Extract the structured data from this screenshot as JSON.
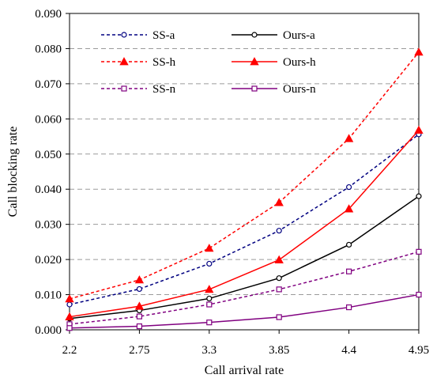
{
  "chart_data": {
    "type": "line",
    "xlabel": "Call arrival rate",
    "ylabel": "Call blocking rate",
    "x": [
      2.2,
      2.75,
      3.3,
      3.85,
      4.4,
      4.95
    ],
    "x_tick_labels": [
      "2.2",
      "2.75",
      "3.3",
      "3.85",
      "4.4",
      "4.95"
    ],
    "ylim": [
      0,
      0.09
    ],
    "y_ticks": [
      0,
      0.01,
      0.02,
      0.03,
      0.04,
      0.05,
      0.06,
      0.07,
      0.08,
      0.09
    ],
    "y_tick_labels": [
      "0.000",
      "0.010",
      "0.020",
      "0.030",
      "0.040",
      "0.050",
      "0.060",
      "0.070",
      "0.080",
      "0.090"
    ],
    "grid": "horizontal dashed",
    "legend_position": "top-left",
    "series": [
      {
        "name": "SS-a",
        "values": [
          0.0072,
          0.0116,
          0.0188,
          0.0282,
          0.0406,
          0.0556
        ],
        "color": "#000080",
        "line_style": "dotted",
        "marker": "circle"
      },
      {
        "name": "Ours-a",
        "values": [
          0.0032,
          0.0055,
          0.0089,
          0.0147,
          0.0242,
          0.038
        ],
        "color": "#000000",
        "line_style": "solid",
        "marker": "circle"
      },
      {
        "name": "SS-h",
        "values": [
          0.0088,
          0.0142,
          0.0232,
          0.0362,
          0.0544,
          0.079
        ],
        "color": "#ff0000",
        "line_style": "dotted",
        "marker": "triangle"
      },
      {
        "name": "Ours-h",
        "values": [
          0.0037,
          0.0067,
          0.0115,
          0.0199,
          0.0344,
          0.0568
        ],
        "color": "#ff0000",
        "line_style": "solid",
        "marker": "triangle"
      },
      {
        "name": "SS-n",
        "values": [
          0.0016,
          0.0038,
          0.0072,
          0.0115,
          0.0166,
          0.0222
        ],
        "color": "#800080",
        "line_style": "dotted",
        "marker": "square"
      },
      {
        "name": "Ours-n",
        "values": [
          0.0005,
          0.001,
          0.0021,
          0.0036,
          0.0064,
          0.01
        ],
        "color": "#800080",
        "line_style": "solid",
        "marker": "square"
      }
    ]
  }
}
